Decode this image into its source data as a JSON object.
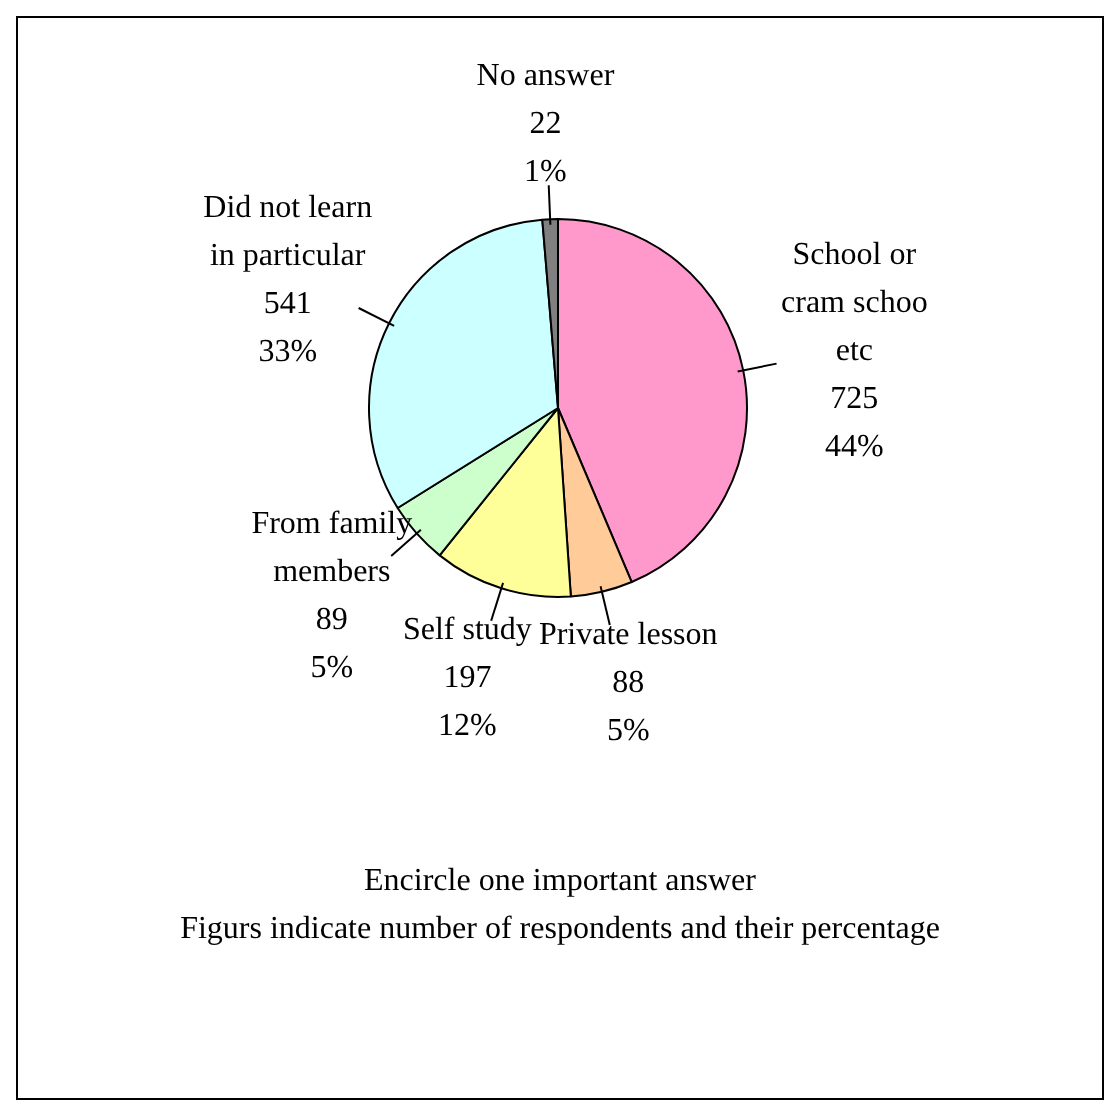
{
  "chart_data": {
    "type": "pie",
    "categories": [
      "School or cram schoo etc",
      "Private lesson",
      "Self study",
      "From family members",
      "Did not learn in particular",
      "No answer"
    ],
    "values": [
      725,
      88,
      197,
      89,
      541,
      22
    ],
    "colors": [
      "#ff99cc",
      "#ffcc99",
      "#ffff99",
      "#ccffcc",
      "#ccffff",
      "#808080"
    ],
    "value_labels": [
      "725\n44%",
      "88\n5%",
      "197\n12%",
      "89\n5%",
      "541\n33%",
      "22\n1%"
    ],
    "annotations": [
      "Encircle one important answer",
      "Figurs indicate number of respondents and their percentage"
    ]
  }
}
